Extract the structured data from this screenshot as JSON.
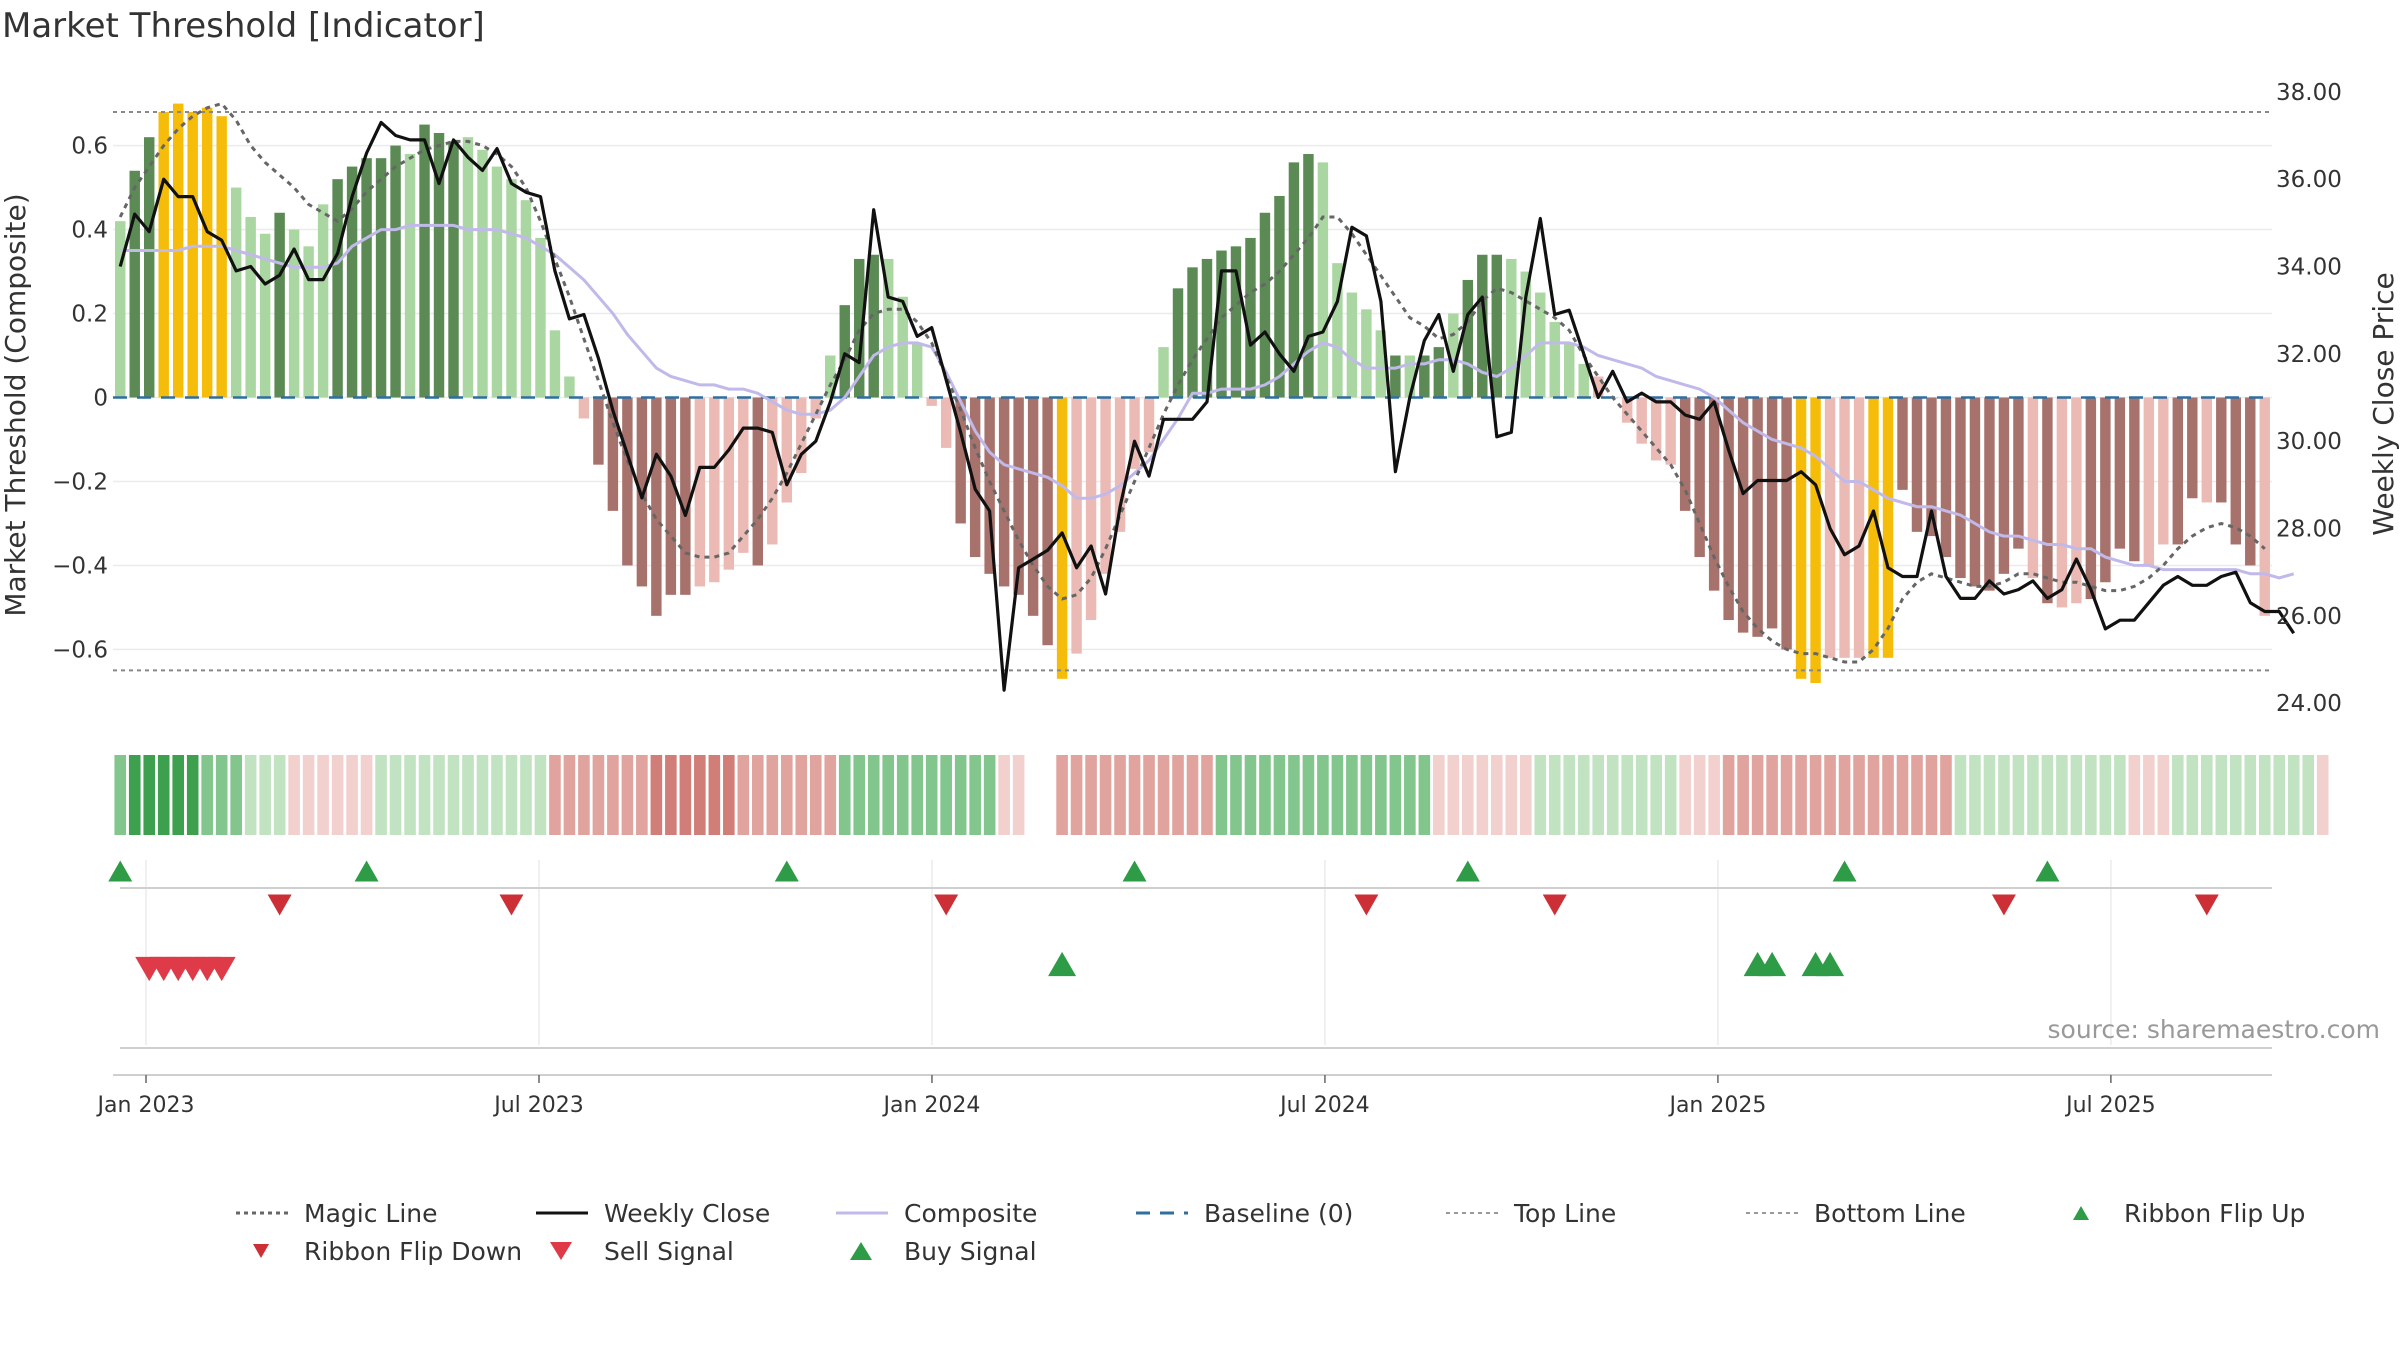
{
  "title": "Market Threshold [Indicator]",
  "source": "source: sharemaestro.com",
  "colors": {
    "bull_dark": "#5b8a55",
    "bull_light": "#aad6a2",
    "bear_dark": "#a8726c",
    "bear_light": "#ecbab4",
    "extreme": "#f5bd0a",
    "close": "#111111",
    "composite": "#c0b9ea",
    "magic": "#666666",
    "baseline": "#2f6f9f",
    "flip_up": "#2e9b46",
    "flip_down": "#cc2f35",
    "sell": "#de3a48",
    "buy": "#2e9b46"
  },
  "chart_data": {
    "type": "bar",
    "title": "Market Threshold [Indicator]",
    "ylabel": "Market Threshold (Composite)",
    "y2label": "Weekly Close Price",
    "ylim": [
      -0.78,
      0.78
    ],
    "y2lim": [
      23.5,
      38.5
    ],
    "yticks": [
      "0.6",
      "0.4",
      "0.2",
      "0",
      "−0.2",
      "−0.4",
      "−0.6"
    ],
    "y2ticks": [
      "38.00",
      "36.00",
      "34.00",
      "32.00",
      "30.00",
      "28.00",
      "26.00",
      "24.00"
    ],
    "top_line": 0.68,
    "bottom_line": -0.65,
    "xticks": [
      {
        "label": "Jan 2023",
        "t": 0.0
      },
      {
        "label": "Jul 2023",
        "t": 0.5
      },
      {
        "label": "Jan 2024",
        "t": 1.0
      },
      {
        "label": "Jul 2024",
        "t": 1.5
      },
      {
        "label": "Jan 2025",
        "t": 2.0
      },
      {
        "label": "Jul 2025",
        "t": 2.5
      }
    ],
    "t_start": -0.042,
    "t_end": 2.705,
    "bars": [
      0.42,
      0.54,
      0.62,
      0.68,
      0.7,
      0.68,
      0.69,
      0.67,
      0.5,
      0.43,
      0.39,
      0.44,
      0.4,
      0.36,
      0.46,
      0.52,
      0.55,
      0.57,
      0.57,
      0.6,
      0.58,
      0.65,
      0.63,
      0.61,
      0.62,
      0.59,
      0.55,
      0.52,
      0.47,
      0.38,
      0.16,
      0.05,
      -0.05,
      -0.16,
      -0.27,
      -0.4,
      -0.45,
      -0.52,
      -0.47,
      -0.47,
      -0.45,
      -0.44,
      -0.41,
      -0.37,
      -0.4,
      -0.35,
      -0.25,
      -0.18,
      -0.05,
      0.1,
      0.22,
      0.33,
      0.34,
      0.33,
      0.24,
      0.13,
      -0.02,
      -0.12,
      -0.3,
      -0.38,
      -0.42,
      -0.45,
      -0.47,
      -0.52,
      -0.59,
      -0.67,
      -0.61,
      -0.53,
      -0.42,
      -0.32,
      -0.17,
      -0.13,
      0.12,
      0.26,
      0.31,
      0.33,
      0.35,
      0.36,
      0.38,
      0.44,
      0.48,
      0.56,
      0.58,
      0.56,
      0.32,
      0.25,
      0.21,
      0.16,
      0.1,
      0.1,
      0.1,
      0.12,
      0.2,
      0.28,
      0.34,
      0.34,
      0.33,
      0.3,
      0.25,
      0.18,
      0.13,
      0.08,
      0.05,
      0.0,
      -0.06,
      -0.11,
      -0.15,
      -0.16,
      -0.27,
      -0.38,
      -0.46,
      -0.53,
      -0.56,
      -0.57,
      -0.55,
      -0.6,
      -0.67,
      -0.68,
      -0.62,
      -0.62,
      -0.62,
      -0.62,
      -0.62,
      -0.22,
      -0.32,
      -0.33,
      -0.38,
      -0.43,
      -0.45,
      -0.46,
      -0.42,
      -0.36,
      -0.43,
      -0.49,
      -0.5,
      -0.49,
      -0.48,
      -0.44,
      -0.36,
      -0.39,
      -0.4,
      -0.35,
      -0.35,
      -0.24,
      -0.25,
      -0.25,
      -0.35,
      -0.4,
      -0.52
    ],
    "bar_style": [
      "ld",
      "dd",
      "dd",
      "ye",
      "ye",
      "ye",
      "ye",
      "ye",
      "ll",
      "ll",
      "ll",
      "dd",
      "ll",
      "ll",
      "ll",
      "dd",
      "dd",
      "dd",
      "dd",
      "dd",
      "ll",
      "dd",
      "dd",
      "dd",
      "ll",
      "ll",
      "ll",
      "ll",
      "ll",
      "ll",
      "ll",
      "ll",
      "bl",
      "bd",
      "bd",
      "bd",
      "bd",
      "bd",
      "bd",
      "bd",
      "bl",
      "bl",
      "bl",
      "bl",
      "bd",
      "bl",
      "bl",
      "bl",
      "bl",
      "ll",
      "dd",
      "dd",
      "dd",
      "ll",
      "ll",
      "ll",
      "bl",
      "bl",
      "bd",
      "bd",
      "bd",
      "bd",
      "bd",
      "bd",
      "bd",
      "ye",
      "bl",
      "bl",
      "bl",
      "bl",
      "bl",
      "bl",
      "ll",
      "dd",
      "dd",
      "dd",
      "dd",
      "dd",
      "dd",
      "dd",
      "dd",
      "dd",
      "dd",
      "ll",
      "ll",
      "ll",
      "ll",
      "ll",
      "dd",
      "ll",
      "dd",
      "dd",
      "ll",
      "dd",
      "dd",
      "dd",
      "ll",
      "ll",
      "ll",
      "ll",
      "ll",
      "ll",
      "bl",
      "bl",
      "bl",
      "bl",
      "bl",
      "bl",
      "bd",
      "bd",
      "bd",
      "bd",
      "bd",
      "bd",
      "bd",
      "bd",
      "ye",
      "ye",
      "bl",
      "bl",
      "bl",
      "ye",
      "ye",
      "bd",
      "bd",
      "bd",
      "bd",
      "bd",
      "bd",
      "bd",
      "bd",
      "bd",
      "bl",
      "bd",
      "bl",
      "bl",
      "bd",
      "bd",
      "bd",
      "bd",
      "bl",
      "bl",
      "bd",
      "bd",
      "bl",
      "bd",
      "bd",
      "bd",
      "bl",
      "bd",
      "bd"
    ],
    "composite": [
      0.35,
      0.35,
      0.35,
      0.35,
      0.35,
      0.36,
      0.36,
      0.36,
      0.35,
      0.34,
      0.33,
      0.32,
      0.31,
      0.31,
      0.31,
      0.32,
      0.36,
      0.38,
      0.4,
      0.4,
      0.41,
      0.41,
      0.41,
      0.41,
      0.4,
      0.4,
      0.4,
      0.39,
      0.38,
      0.36,
      0.34,
      0.31,
      0.28,
      0.24,
      0.2,
      0.15,
      0.11,
      0.07,
      0.05,
      0.04,
      0.03,
      0.03,
      0.02,
      0.02,
      0.01,
      -0.01,
      -0.03,
      -0.04,
      -0.04,
      -0.03,
      0.0,
      0.05,
      0.1,
      0.12,
      0.13,
      0.13,
      0.12,
      0.06,
      -0.01,
      -0.08,
      -0.13,
      -0.16,
      -0.17,
      -0.18,
      -0.19,
      -0.21,
      -0.24,
      -0.24,
      -0.23,
      -0.21,
      -0.18,
      -0.15,
      -0.1,
      -0.05,
      0.01,
      0.01,
      0.02,
      0.02,
      0.02,
      0.03,
      0.05,
      0.08,
      0.11,
      0.13,
      0.12,
      0.09,
      0.07,
      0.07,
      0.07,
      0.08,
      0.08,
      0.09,
      0.09,
      0.08,
      0.06,
      0.05,
      0.07,
      0.1,
      0.13,
      0.13,
      0.13,
      0.12,
      0.1,
      0.09,
      0.08,
      0.07,
      0.05,
      0.04,
      0.03,
      0.02,
      0.0,
      -0.03,
      -0.06,
      -0.08,
      -0.1,
      -0.11,
      -0.12,
      -0.14,
      -0.17,
      -0.2,
      -0.2,
      -0.22,
      -0.24,
      -0.25,
      -0.26,
      -0.26,
      -0.27,
      -0.28,
      -0.3,
      -0.32,
      -0.33,
      -0.33,
      -0.34,
      -0.35,
      -0.35,
      -0.36,
      -0.36,
      -0.38,
      -0.39,
      -0.4,
      -0.4,
      -0.41,
      -0.41,
      -0.41,
      -0.41,
      -0.41,
      -0.41,
      -0.42,
      -0.42,
      -0.43,
      -0.42
    ],
    "magic": [
      0.43,
      0.5,
      0.55,
      0.6,
      0.64,
      0.67,
      0.69,
      0.7,
      0.66,
      0.6,
      0.56,
      0.53,
      0.5,
      0.46,
      0.44,
      0.42,
      0.45,
      0.49,
      0.52,
      0.55,
      0.57,
      0.59,
      0.6,
      0.61,
      0.61,
      0.6,
      0.58,
      0.55,
      0.5,
      0.42,
      0.33,
      0.24,
      0.14,
      0.04,
      -0.06,
      -0.15,
      -0.23,
      -0.29,
      -0.33,
      -0.37,
      -0.38,
      -0.38,
      -0.37,
      -0.33,
      -0.29,
      -0.24,
      -0.18,
      -0.11,
      -0.04,
      0.03,
      0.09,
      0.16,
      0.2,
      0.21,
      0.21,
      0.18,
      0.13,
      0.05,
      -0.03,
      -0.12,
      -0.2,
      -0.27,
      -0.34,
      -0.4,
      -0.45,
      -0.48,
      -0.47,
      -0.43,
      -0.36,
      -0.28,
      -0.2,
      -0.12,
      -0.04,
      0.03,
      0.09,
      0.14,
      0.19,
      0.22,
      0.25,
      0.27,
      0.3,
      0.34,
      0.38,
      0.43,
      0.43,
      0.39,
      0.34,
      0.29,
      0.24,
      0.19,
      0.17,
      0.14,
      0.15,
      0.18,
      0.23,
      0.26,
      0.25,
      0.23,
      0.21,
      0.19,
      0.16,
      0.1,
      0.05,
      0.0,
      -0.04,
      -0.08,
      -0.12,
      -0.16,
      -0.22,
      -0.3,
      -0.38,
      -0.45,
      -0.51,
      -0.55,
      -0.58,
      -0.6,
      -0.61,
      -0.61,
      -0.62,
      -0.63,
      -0.63,
      -0.6,
      -0.55,
      -0.48,
      -0.44,
      -0.42,
      -0.43,
      -0.44,
      -0.45,
      -0.45,
      -0.44,
      -0.42,
      -0.42,
      -0.43,
      -0.44,
      -0.44,
      -0.45,
      -0.46,
      -0.46,
      -0.45,
      -0.43,
      -0.4,
      -0.36,
      -0.33,
      -0.31,
      -0.3,
      -0.31,
      -0.33,
      -0.36
    ],
    "close": [
      34.0,
      35.2,
      34.8,
      36.0,
      35.6,
      35.6,
      34.8,
      34.6,
      33.9,
      34.0,
      33.6,
      33.8,
      34.4,
      33.7,
      33.7,
      34.3,
      35.6,
      36.6,
      37.3,
      37.0,
      36.9,
      36.9,
      35.9,
      36.9,
      36.5,
      36.2,
      36.7,
      35.9,
      35.7,
      35.6,
      33.9,
      32.8,
      32.9,
      31.9,
      30.7,
      29.7,
      28.7,
      29.7,
      29.2,
      28.3,
      29.4,
      29.4,
      29.8,
      30.3,
      30.3,
      30.2,
      29.0,
      29.7,
      30.0,
      30.9,
      32.0,
      31.8,
      35.3,
      33.3,
      33.2,
      32.4,
      32.6,
      31.4,
      30.2,
      28.9,
      28.4,
      24.3,
      27.1,
      27.3,
      27.5,
      27.9,
      27.1,
      27.6,
      26.5,
      28.5,
      30.0,
      29.2,
      30.5,
      30.5,
      30.5,
      30.9,
      33.9,
      33.9,
      32.2,
      32.5,
      32.0,
      31.6,
      32.4,
      32.5,
      33.2,
      34.9,
      34.7,
      33.2,
      29.3,
      31.0,
      32.3,
      32.9,
      31.6,
      32.9,
      33.3,
      30.1,
      30.2,
      33.3,
      35.1,
      32.9,
      33.0,
      32.0,
      31.0,
      31.6,
      30.9,
      31.1,
      30.9,
      30.9,
      30.6,
      30.5,
      30.9,
      29.8,
      28.8,
      29.1,
      29.1,
      29.1,
      29.3,
      29.0,
      28.0,
      27.4,
      27.6,
      28.4,
      27.1,
      26.9,
      26.9,
      28.4,
      26.9,
      26.4,
      26.4,
      26.8,
      26.5,
      26.6,
      26.8,
      26.4,
      26.6,
      27.3,
      26.6,
      25.7,
      25.9,
      25.9,
      26.3,
      26.7,
      26.9,
      26.7,
      26.7,
      26.9,
      27.0,
      26.3,
      26.1,
      26.1,
      25.6
    ],
    "ribbon_style": [
      "a2",
      "a3",
      "a3",
      "a3",
      "a3",
      "a3",
      "a2",
      "a2",
      "a2",
      "a1",
      "a1",
      "a1",
      "r1",
      "r1",
      "r1",
      "r1",
      "r1",
      "r1",
      "a1",
      "a1",
      "a1",
      "a1",
      "a1",
      "a1",
      "a1",
      "a1",
      "a1",
      "a1",
      "a1",
      "a1",
      "r2",
      "r2",
      "r2",
      "r2",
      "r2",
      "r2",
      "r2",
      "r3",
      "r3",
      "r3",
      "r3",
      "r3",
      "r3",
      "r2",
      "r2",
      "r2",
      "r2",
      "r2",
      "r2",
      "r2",
      "a2",
      "a2",
      "a2",
      "a2",
      "a2",
      "a2",
      "a2",
      "a2",
      "a2",
      "a2",
      "a2",
      "r1",
      "r1",
      "gap",
      "gap",
      "r2",
      "r2",
      "r2",
      "r2",
      "r2",
      "r2",
      "r2",
      "r2",
      "r2",
      "r2",
      "r2",
      "a2",
      "a2",
      "a2",
      "a2",
      "a2",
      "a2",
      "a2",
      "a2",
      "a2",
      "a2",
      "a2",
      "a2",
      "a2",
      "a2",
      "a2",
      "r1",
      "r1",
      "r1",
      "r1",
      "r1",
      "r1",
      "r1",
      "a1",
      "a1",
      "a1",
      "a1",
      "a1",
      "a1",
      "a1",
      "a1",
      "a1",
      "a1",
      "r1",
      "r1",
      "r1",
      "r2",
      "r2",
      "r2",
      "r2",
      "r2",
      "r2",
      "r2",
      "r2",
      "r2",
      "r2",
      "r2",
      "r2",
      "r2",
      "r2",
      "r2",
      "r2",
      "a1",
      "a1",
      "a1",
      "a1",
      "a1",
      "a1",
      "a1",
      "a1",
      "a1",
      "a1",
      "a1",
      "a1",
      "r1",
      "r1",
      "r1",
      "a1",
      "a1",
      "a1",
      "a1",
      "a1",
      "a1",
      "a1",
      "a1",
      "a1",
      "a1",
      "r1"
    ],
    "ribbon_colors": {
      "a3": "#3da04f",
      "a2": "#82c58d",
      "a1": "#c2e3c2",
      "r1": "#f2d0ce",
      "r2": "#e0a39e",
      "r3": "#d27e78"
    },
    "ribbon_flip_up_idx": [
      0,
      17,
      46,
      70,
      93,
      119,
      133
    ],
    "ribbon_flip_down_idx": [
      11,
      27,
      57,
      86,
      99,
      130,
      144
    ],
    "sell_signal_idx": [
      2,
      3,
      4,
      5,
      6,
      7
    ],
    "buy_signal_idx": [
      65,
      113,
      114,
      117,
      118
    ]
  },
  "legend": [
    {
      "label": "Magic Line",
      "sym": "dotted-gray"
    },
    {
      "label": "Weekly Close",
      "sym": "solid-black"
    },
    {
      "label": "Composite",
      "sym": "solid-lavender"
    },
    {
      "label": "Baseline (0)",
      "sym": "dashed-blue"
    },
    {
      "label": "Top Line",
      "sym": "dotted-light"
    },
    {
      "label": "Bottom Line",
      "sym": "dotted-light"
    },
    {
      "label": "Ribbon Flip Up",
      "sym": "triangle-up-green-small"
    },
    {
      "label": "Ribbon Flip Down",
      "sym": "triangle-down-red-small"
    },
    {
      "label": "Sell Signal",
      "sym": "triangle-down-red"
    },
    {
      "label": "Buy Signal",
      "sym": "triangle-up-green"
    }
  ]
}
